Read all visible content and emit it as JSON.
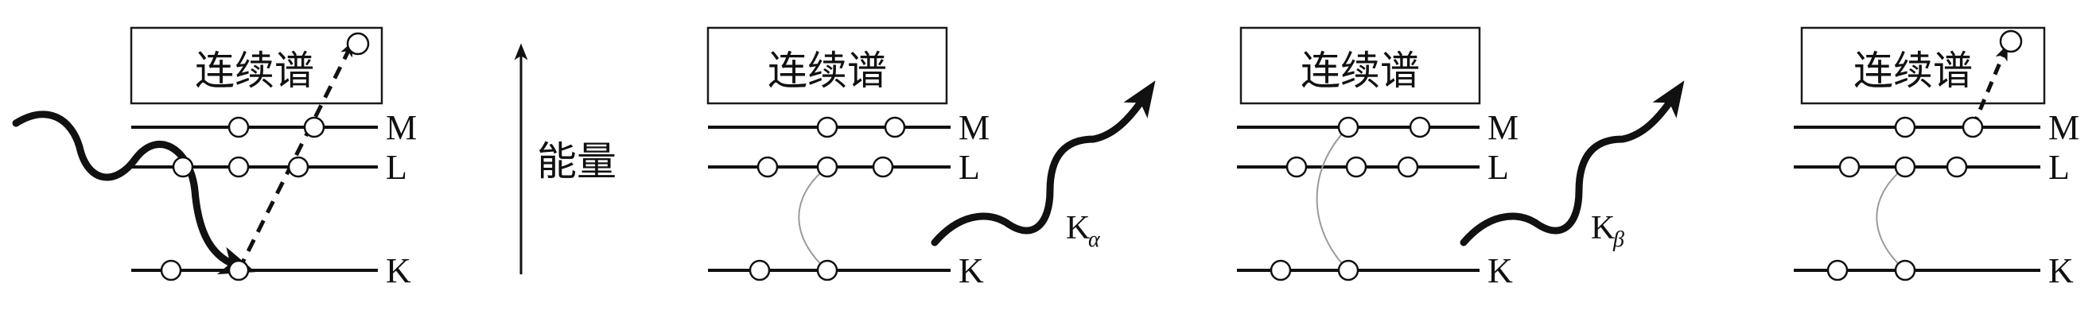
{
  "continuum_label": "连续谱",
  "energy_label": "能量",
  "shell_labels": {
    "M": "M",
    "L": "L",
    "K": "K"
  },
  "emission_labels": [
    {
      "main": "K",
      "sub": "α"
    },
    {
      "main": "K",
      "sub": "β"
    }
  ],
  "colors": {
    "ink": "#111111",
    "transition": "#9a9a9a",
    "background": "#ffffff"
  }
}
